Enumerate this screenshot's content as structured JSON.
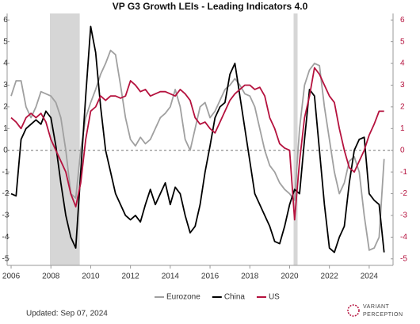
{
  "chart_data": {
    "type": "line",
    "title": "VP G3 Growth LEIs - Leading Indicators 4.0",
    "x": [
      2006,
      2006.25,
      2006.5,
      2006.75,
      2007,
      2007.25,
      2007.5,
      2007.75,
      2008,
      2008.25,
      2008.5,
      2008.75,
      2009,
      2009.25,
      2009.5,
      2009.75,
      2010,
      2010.25,
      2010.5,
      2010.75,
      2011,
      2011.25,
      2011.5,
      2011.75,
      2012,
      2012.25,
      2012.5,
      2012.75,
      2013,
      2013.25,
      2013.5,
      2013.75,
      2014,
      2014.25,
      2014.5,
      2014.75,
      2015,
      2015.25,
      2015.5,
      2015.75,
      2016,
      2016.25,
      2016.5,
      2016.75,
      2017,
      2017.25,
      2017.5,
      2017.75,
      2018,
      2018.25,
      2018.5,
      2018.75,
      2019,
      2019.25,
      2019.5,
      2019.75,
      2020,
      2020.25,
      2020.5,
      2020.75,
      2021,
      2021.25,
      2021.5,
      2021.75,
      2022,
      2022.25,
      2022.5,
      2022.75,
      2023,
      2023.25,
      2023.5,
      2023.75,
      2024,
      2024.25,
      2024.5,
      2024.75
    ],
    "series": [
      {
        "name": "Eurozone",
        "color": "#a0a0a0",
        "values": [
          2.5,
          3.2,
          3.2,
          2.0,
          1.5,
          2.0,
          2.7,
          2.6,
          2.5,
          2.2,
          1.5,
          0.0,
          -2.0,
          -2.2,
          0.0,
          1.5,
          2.2,
          2.8,
          3.5,
          4.0,
          4.6,
          4.4,
          3.0,
          1.5,
          0.5,
          0.2,
          0.6,
          0.3,
          0.5,
          1.0,
          1.5,
          1.7,
          2.0,
          2.8,
          2.0,
          0.5,
          0.0,
          1.0,
          2.0,
          2.2,
          1.5,
          1.8,
          2.3,
          2.8,
          3.0,
          3.3,
          3.0,
          2.6,
          2.5,
          2.0,
          1.0,
          0.0,
          -0.7,
          -1.0,
          -1.5,
          -1.8,
          -2.0,
          -2.3,
          1.0,
          3.0,
          3.7,
          4.0,
          3.9,
          2.0,
          0.5,
          -1.0,
          -2.0,
          -1.5,
          -0.5,
          -0.3,
          -1.0,
          -3.0,
          -4.6,
          -4.5,
          -4.0,
          -0.4
        ]
      },
      {
        "name": "China",
        "color": "#000000",
        "values": [
          -2.0,
          -2.1,
          0.5,
          1.0,
          1.2,
          1.4,
          1.2,
          1.8,
          1.5,
          0.2,
          -1.5,
          -3.0,
          -4.0,
          -4.5,
          -1.0,
          2.5,
          5.7,
          4.5,
          2.0,
          0.0,
          -1.0,
          -2.0,
          -2.5,
          -3.0,
          -3.2,
          -3.0,
          -3.3,
          -2.5,
          -1.8,
          -2.5,
          -2.0,
          -1.5,
          -2.5,
          -1.7,
          -2.0,
          -3.0,
          -3.8,
          -3.5,
          -2.5,
          -1.0,
          0.2,
          1.5,
          2.0,
          2.2,
          3.5,
          4.0,
          2.5,
          1.0,
          -0.5,
          -2.0,
          -2.5,
          -3.0,
          -3.5,
          -4.2,
          -4.3,
          -3.5,
          -2.5,
          -1.8,
          -2.0,
          0.5,
          2.8,
          2.5,
          0.0,
          -2.5,
          -4.5,
          -4.7,
          -4.0,
          -3.5,
          -1.5,
          0.0,
          0.5,
          0.6,
          -2.0,
          -2.3,
          -2.5,
          -4.7
        ]
      },
      {
        "name": "US",
        "color": "#b5123e",
        "values": [
          1.5,
          1.3,
          1.0,
          1.5,
          1.7,
          1.5,
          1.7,
          1.3,
          0.5,
          0.0,
          -0.5,
          -1.0,
          -2.0,
          -2.6,
          -1.5,
          0.5,
          1.8,
          2.0,
          2.5,
          2.3,
          2.5,
          2.5,
          2.4,
          2.5,
          3.2,
          3.0,
          2.7,
          2.8,
          2.5,
          2.6,
          2.7,
          2.7,
          2.6,
          2.5,
          2.8,
          2.6,
          2.3,
          1.5,
          1.2,
          1.3,
          1.0,
          0.8,
          1.3,
          1.8,
          2.3,
          2.6,
          2.8,
          3.0,
          3.0,
          2.8,
          2.9,
          2.5,
          1.5,
          1.0,
          0.3,
          0.1,
          0.0,
          -3.2,
          -0.5,
          1.5,
          2.5,
          3.8,
          3.5,
          3.0,
          2.5,
          2.2,
          1.0,
          0.0,
          -0.8,
          -1.0,
          -0.5,
          0.0,
          0.7,
          1.2,
          1.8,
          1.8
        ]
      }
    ],
    "shaded_ranges": [
      [
        2007.95,
        2009.45
      ],
      [
        2020.2,
        2020.4
      ]
    ],
    "xlim": [
      2005.8,
      2025.2
    ],
    "xticks": [
      2006,
      2008,
      2010,
      2012,
      2014,
      2016,
      2018,
      2020,
      2022,
      2024
    ],
    "ylim": [
      -5.3,
      6.3
    ],
    "yticks": [
      -5,
      -4,
      -3,
      -2,
      -1,
      0,
      1,
      2,
      3,
      4,
      5,
      6
    ],
    "y2lim": [
      -5.3,
      6.3
    ],
    "y2ticks": [
      -5,
      -4,
      -3,
      -2,
      -1,
      0,
      1,
      2,
      3,
      4,
      5,
      6
    ],
    "zero_line": true,
    "legend": "bottom"
  },
  "footer": {
    "updated": "Updated: Sep 07, 2024",
    "logo_line1": "VARIANT",
    "logo_line2": "PERCEPTION"
  }
}
